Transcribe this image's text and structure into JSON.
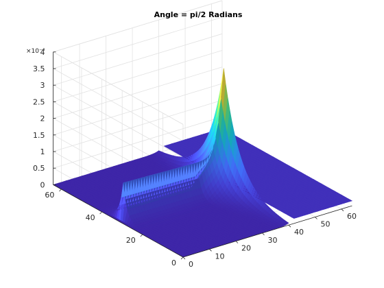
{
  "chart_data": {
    "type": "surface",
    "title": "Angle = pi/2 Radians",
    "x_ticks": [
      "0",
      "10",
      "20",
      "30",
      "40",
      "50",
      "60"
    ],
    "y_ticks": [
      "0",
      "20",
      "40",
      "60"
    ],
    "z_ticks": [
      "0",
      "0.5",
      "1",
      "1.5",
      "2",
      "2.5",
      "3",
      "3.5",
      "4"
    ],
    "z_exponent_label": "×10⁻⁴",
    "xlim": [
      0,
      64
    ],
    "ylim": [
      0,
      64
    ],
    "zlim": [
      0,
      0.0004
    ],
    "z_scale_factor": 0.0001,
    "grid": true,
    "colormap": "parula",
    "surface_description_values": {
      "ridge_x_range": [
        2,
        41
      ],
      "ridge_y": 32,
      "ridge_start_height": 0.00011,
      "ridge_mid_height": 0.0001,
      "peak_x": 40,
      "peak_y": 32,
      "peak_height": 0.000363,
      "plateau_x_range": [
        41,
        64
      ],
      "plateau_height": 1.5e-05
    }
  },
  "colors": {
    "surface_low": "#3e30b0",
    "surface_mid": "#21b3b0",
    "surface_high": "#fdbf2b",
    "grid": "#e2e2e2",
    "axis": "#262626"
  }
}
